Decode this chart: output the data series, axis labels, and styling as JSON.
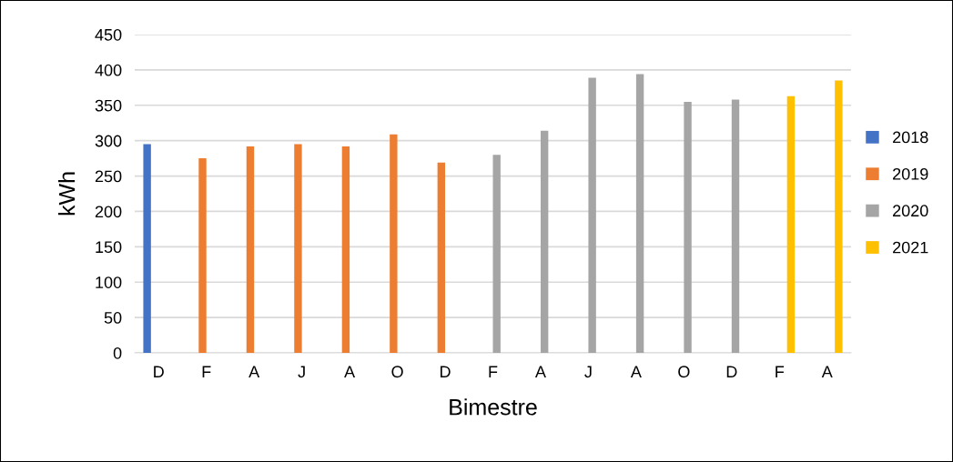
{
  "chart_data": {
    "type": "bar",
    "xlabel": "Bimestre",
    "ylabel": "kWh",
    "categories": [
      "D",
      "F",
      "A",
      "J",
      "A",
      "O",
      "D",
      "F",
      "A",
      "J",
      "A",
      "O",
      "D",
      "F",
      "A"
    ],
    "series": [
      {
        "name": "2018",
        "color": "#4472c4",
        "values": [
          295,
          null,
          null,
          null,
          null,
          null,
          null,
          null,
          null,
          null,
          null,
          null,
          null,
          null,
          null
        ]
      },
      {
        "name": "2019",
        "color": "#ed7d31",
        "values": [
          null,
          275,
          292,
          295,
          292,
          309,
          269,
          null,
          null,
          null,
          null,
          null,
          null,
          null,
          null
        ]
      },
      {
        "name": "2020",
        "color": "#a5a5a5",
        "values": [
          null,
          null,
          null,
          null,
          null,
          null,
          null,
          280,
          314,
          389,
          394,
          355,
          358,
          null,
          null
        ]
      },
      {
        "name": "2021",
        "color": "#ffc000",
        "values": [
          null,
          null,
          null,
          null,
          null,
          null,
          null,
          null,
          null,
          null,
          null,
          null,
          null,
          363,
          385
        ]
      }
    ],
    "ylim": [
      0,
      450
    ],
    "yticks": [
      0,
      50,
      100,
      150,
      200,
      250,
      300,
      350,
      400,
      450
    ],
    "grid": "y",
    "legend": "right"
  }
}
